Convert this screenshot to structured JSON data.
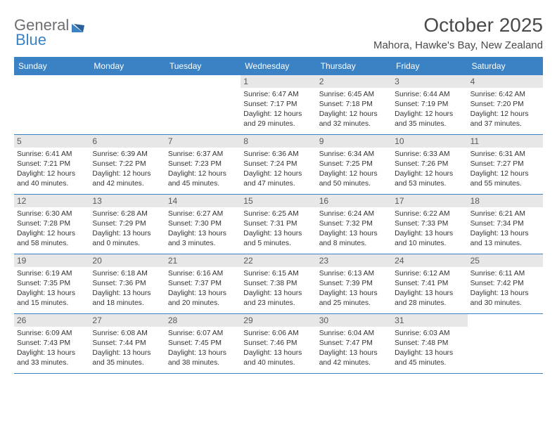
{
  "logo": {
    "text1": "General",
    "text2": "Blue"
  },
  "title": "October 2025",
  "location": "Mahora, Hawke's Bay, New Zealand",
  "colors": {
    "header_bg": "#3a82c4",
    "header_text": "#ffffff",
    "daynum_bg": "#e7e7e8",
    "body_text": "#333333",
    "logo_gray": "#6d6e71",
    "logo_blue": "#3a82c4",
    "border": "#3a82c4"
  },
  "weekdays": [
    "Sunday",
    "Monday",
    "Tuesday",
    "Wednesday",
    "Thursday",
    "Friday",
    "Saturday"
  ],
  "weeks": [
    [
      null,
      null,
      null,
      {
        "n": "1",
        "sr": "6:47 AM",
        "ss": "7:17 PM",
        "dl": "12 hours and 29 minutes."
      },
      {
        "n": "2",
        "sr": "6:45 AM",
        "ss": "7:18 PM",
        "dl": "12 hours and 32 minutes."
      },
      {
        "n": "3",
        "sr": "6:44 AM",
        "ss": "7:19 PM",
        "dl": "12 hours and 35 minutes."
      },
      {
        "n": "4",
        "sr": "6:42 AM",
        "ss": "7:20 PM",
        "dl": "12 hours and 37 minutes."
      }
    ],
    [
      {
        "n": "5",
        "sr": "6:41 AM",
        "ss": "7:21 PM",
        "dl": "12 hours and 40 minutes."
      },
      {
        "n": "6",
        "sr": "6:39 AM",
        "ss": "7:22 PM",
        "dl": "12 hours and 42 minutes."
      },
      {
        "n": "7",
        "sr": "6:37 AM",
        "ss": "7:23 PM",
        "dl": "12 hours and 45 minutes."
      },
      {
        "n": "8",
        "sr": "6:36 AM",
        "ss": "7:24 PM",
        "dl": "12 hours and 47 minutes."
      },
      {
        "n": "9",
        "sr": "6:34 AM",
        "ss": "7:25 PM",
        "dl": "12 hours and 50 minutes."
      },
      {
        "n": "10",
        "sr": "6:33 AM",
        "ss": "7:26 PM",
        "dl": "12 hours and 53 minutes."
      },
      {
        "n": "11",
        "sr": "6:31 AM",
        "ss": "7:27 PM",
        "dl": "12 hours and 55 minutes."
      }
    ],
    [
      {
        "n": "12",
        "sr": "6:30 AM",
        "ss": "7:28 PM",
        "dl": "12 hours and 58 minutes."
      },
      {
        "n": "13",
        "sr": "6:28 AM",
        "ss": "7:29 PM",
        "dl": "13 hours and 0 minutes."
      },
      {
        "n": "14",
        "sr": "6:27 AM",
        "ss": "7:30 PM",
        "dl": "13 hours and 3 minutes."
      },
      {
        "n": "15",
        "sr": "6:25 AM",
        "ss": "7:31 PM",
        "dl": "13 hours and 5 minutes."
      },
      {
        "n": "16",
        "sr": "6:24 AM",
        "ss": "7:32 PM",
        "dl": "13 hours and 8 minutes."
      },
      {
        "n": "17",
        "sr": "6:22 AM",
        "ss": "7:33 PM",
        "dl": "13 hours and 10 minutes."
      },
      {
        "n": "18",
        "sr": "6:21 AM",
        "ss": "7:34 PM",
        "dl": "13 hours and 13 minutes."
      }
    ],
    [
      {
        "n": "19",
        "sr": "6:19 AM",
        "ss": "7:35 PM",
        "dl": "13 hours and 15 minutes."
      },
      {
        "n": "20",
        "sr": "6:18 AM",
        "ss": "7:36 PM",
        "dl": "13 hours and 18 minutes."
      },
      {
        "n": "21",
        "sr": "6:16 AM",
        "ss": "7:37 PM",
        "dl": "13 hours and 20 minutes."
      },
      {
        "n": "22",
        "sr": "6:15 AM",
        "ss": "7:38 PM",
        "dl": "13 hours and 23 minutes."
      },
      {
        "n": "23",
        "sr": "6:13 AM",
        "ss": "7:39 PM",
        "dl": "13 hours and 25 minutes."
      },
      {
        "n": "24",
        "sr": "6:12 AM",
        "ss": "7:41 PM",
        "dl": "13 hours and 28 minutes."
      },
      {
        "n": "25",
        "sr": "6:11 AM",
        "ss": "7:42 PM",
        "dl": "13 hours and 30 minutes."
      }
    ],
    [
      {
        "n": "26",
        "sr": "6:09 AM",
        "ss": "7:43 PM",
        "dl": "13 hours and 33 minutes."
      },
      {
        "n": "27",
        "sr": "6:08 AM",
        "ss": "7:44 PM",
        "dl": "13 hours and 35 minutes."
      },
      {
        "n": "28",
        "sr": "6:07 AM",
        "ss": "7:45 PM",
        "dl": "13 hours and 38 minutes."
      },
      {
        "n": "29",
        "sr": "6:06 AM",
        "ss": "7:46 PM",
        "dl": "13 hours and 40 minutes."
      },
      {
        "n": "30",
        "sr": "6:04 AM",
        "ss": "7:47 PM",
        "dl": "13 hours and 42 minutes."
      },
      {
        "n": "31",
        "sr": "6:03 AM",
        "ss": "7:48 PM",
        "dl": "13 hours and 45 minutes."
      },
      null
    ]
  ],
  "labels": {
    "sunrise": "Sunrise:",
    "sunset": "Sunset:",
    "daylight": "Daylight:"
  }
}
